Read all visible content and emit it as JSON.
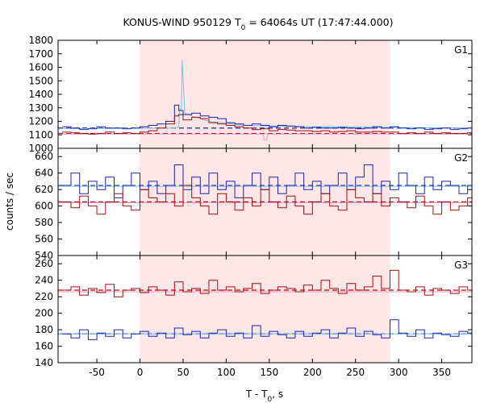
{
  "chart_data": {
    "type": "line",
    "title": "KONUS-WIND 950129 T",
    "title_sub": "0",
    "title_rest": " = 64064s UT (17:47:44.000)",
    "xlabel": "T - T",
    "xlabel_sub": "0",
    "xlabel_rest": ", s",
    "ylabel": "counts / sec",
    "xlim": [
      -95,
      385
    ],
    "xticks": [
      -50,
      0,
      50,
      100,
      150,
      200,
      250,
      300,
      350
    ],
    "highlight_interval": [
      0,
      290
    ],
    "colors": {
      "highlight": "#fde6e6",
      "red_series": "#a01010",
      "blue_series": "#2222aa",
      "light_fit": "#6fc3e8",
      "pink_fit": "#e79ad6",
      "red_dash": "#cc0000",
      "blue_dash": "#2222aa"
    },
    "panels": [
      {
        "label": "G1",
        "ylim": [
          1000,
          1800
        ],
        "yticks": [
          1000,
          1100,
          1200,
          1300,
          1400,
          1500,
          1600,
          1700,
          1800
        ],
        "background_levels": {
          "red": 1110,
          "blue": 1150
        },
        "series": [
          {
            "role": "red_series",
            "x": [
              -90,
              -80,
              -70,
              -60,
              -50,
              -40,
              -30,
              -20,
              -10,
              0,
              10,
              20,
              30,
              40,
              45,
              50,
              60,
              70,
              80,
              90,
              100,
              110,
              120,
              130,
              140,
              150,
              160,
              170,
              180,
              190,
              200,
              210,
              220,
              230,
              240,
              250,
              260,
              270,
              280,
              290,
              300,
              310,
              320,
              330,
              340,
              350,
              360,
              370,
              380
            ],
            "y": [
              1120,
              1115,
              1110,
              1105,
              1110,
              1120,
              1110,
              1115,
              1110,
              1120,
              1130,
              1150,
              1180,
              1240,
              1250,
              1210,
              1230,
              1220,
              1190,
              1180,
              1170,
              1160,
              1150,
              1140,
              1145,
              1130,
              1140,
              1135,
              1130,
              1130,
              1125,
              1130,
              1120,
              1125,
              1130,
              1120,
              1120,
              1125,
              1120,
              1120,
              1110,
              1115,
              1110,
              1120,
              1110,
              1115,
              1110,
              1110,
              1115
            ]
          },
          {
            "role": "blue_series",
            "x": [
              -90,
              -80,
              -70,
              -60,
              -50,
              -40,
              -30,
              -20,
              -10,
              0,
              10,
              20,
              30,
              40,
              45,
              50,
              60,
              70,
              80,
              90,
              100,
              110,
              120,
              130,
              140,
              150,
              160,
              170,
              180,
              190,
              200,
              210,
              220,
              230,
              240,
              250,
              260,
              270,
              280,
              290,
              300,
              310,
              320,
              330,
              340,
              350,
              360,
              370,
              380
            ],
            "y": [
              1160,
              1150,
              1140,
              1145,
              1160,
              1150,
              1150,
              1145,
              1150,
              1160,
              1170,
              1180,
              1200,
              1320,
              1280,
              1250,
              1260,
              1240,
              1230,
              1220,
              1190,
              1180,
              1170,
              1180,
              1170,
              1160,
              1170,
              1165,
              1160,
              1150,
              1155,
              1150,
              1150,
              1155,
              1150,
              1145,
              1150,
              1160,
              1150,
              1160,
              1150,
              1145,
              1150,
              1140,
              1145,
              1150,
              1140,
              1145,
              1150
            ]
          },
          {
            "role": "light_fit",
            "x": [
              -95,
              40,
              45,
              46,
              48,
              49,
              52,
              60,
              80,
              120,
              200,
              385
            ],
            "y": [
              1145,
              1150,
              1160,
              1290,
              1290,
              1650,
              1260,
              1240,
              1200,
              1170,
              1160,
              1150
            ]
          },
          {
            "role": "pink_fit",
            "x": [
              -95,
              143,
              144,
              147,
              148,
              385
            ],
            "y": [
              1105,
              1105,
              1060,
              1060,
              1105,
              1105
            ]
          }
        ]
      },
      {
        "label": "G2",
        "ylim": [
          540,
          670
        ],
        "yticks": [
          540,
          560,
          580,
          600,
          620,
          640,
          660
        ],
        "background_levels": {
          "red": 605,
          "blue": 625
        },
        "series": [
          {
            "role": "red_series",
            "x": [
              -90,
              -80,
              -70,
              -60,
              -50,
              -40,
              -30,
              -20,
              -10,
              0,
              10,
              20,
              30,
              40,
              50,
              60,
              70,
              80,
              90,
              100,
              110,
              120,
              130,
              140,
              150,
              160,
              170,
              180,
              190,
              200,
              210,
              220,
              230,
              240,
              250,
              260,
              270,
              280,
              290,
              300,
              310,
              320,
              330,
              340,
              350,
              360,
              370,
              380
            ],
            "y": [
              605,
              598,
              612,
              600,
              590,
              605,
              615,
              600,
              595,
              620,
              610,
              605,
              615,
              600,
              625,
              610,
              600,
              590,
              615,
              605,
              595,
              610,
              600,
              620,
              605,
              598,
              612,
              600,
              590,
              605,
              615,
              600,
              595,
              620,
              610,
              605,
              615,
              600,
              610,
              605,
              598,
              612,
              600,
              590,
              605,
              595,
              600,
              610
            ]
          },
          {
            "role": "blue_series",
            "x": [
              -90,
              -80,
              -70,
              -60,
              -50,
              -40,
              -30,
              -20,
              -10,
              0,
              10,
              20,
              30,
              40,
              50,
              60,
              70,
              80,
              90,
              100,
              110,
              120,
              130,
              140,
              150,
              160,
              170,
              180,
              190,
              200,
              210,
              220,
              230,
              240,
              250,
              260,
              270,
              280,
              290,
              300,
              310,
              320,
              330,
              340,
              350,
              360,
              370,
              380
            ],
            "y": [
              625,
              640,
              615,
              630,
              620,
              635,
              610,
              625,
              640,
              620,
              630,
              615,
              625,
              650,
              620,
              635,
              615,
              640,
              620,
              630,
              610,
              625,
              640,
              620,
              635,
              615,
              625,
              640,
              620,
              630,
              615,
              625,
              640,
              620,
              635,
              650,
              615,
              630,
              620,
              640,
              625,
              615,
              635,
              620,
              630,
              625,
              615,
              625
            ]
          },
          {
            "role": "light_fit",
            "x": [
              -95,
              385
            ],
            "y": [
              624,
              624
            ]
          },
          {
            "role": "pink_fit",
            "x": [
              -95,
              385
            ],
            "y": [
              604,
              604
            ]
          }
        ]
      },
      {
        "label": "G3",
        "ylim": [
          140,
          270
        ],
        "yticks": [
          140,
          160,
          180,
          200,
          220,
          240,
          260
        ],
        "background_levels": {
          "red": 228,
          "blue": 175
        },
        "series": [
          {
            "role": "red_series",
            "x": [
              -90,
              -80,
              -70,
              -60,
              -50,
              -40,
              -30,
              -20,
              -10,
              0,
              10,
              20,
              30,
              40,
              50,
              60,
              70,
              80,
              90,
              100,
              110,
              120,
              130,
              140,
              150,
              160,
              170,
              180,
              190,
              200,
              210,
              220,
              230,
              240,
              250,
              260,
              270,
              280,
              290,
              300,
              310,
              320,
              330,
              340,
              350,
              360,
              370,
              380
            ],
            "y": [
              228,
              232,
              222,
              230,
              225,
              235,
              220,
              228,
              230,
              225,
              232,
              228,
              222,
              238,
              226,
              230,
              224,
              240,
              228,
              232,
              226,
              230,
              236,
              224,
              228,
              232,
              230,
              226,
              234,
              228,
              240,
              230,
              224,
              236,
              228,
              232,
              245,
              230,
              252,
              228,
              226,
              232,
              222,
              230,
              228,
              224,
              232,
              228
            ]
          },
          {
            "role": "blue_series",
            "x": [
              -90,
              -80,
              -70,
              -60,
              -50,
              -40,
              -30,
              -20,
              -10,
              0,
              10,
              20,
              30,
              40,
              50,
              60,
              70,
              80,
              90,
              100,
              110,
              120,
              130,
              140,
              150,
              160,
              170,
              180,
              190,
              200,
              210,
              220,
              230,
              240,
              250,
              260,
              270,
              280,
              290,
              300,
              310,
              320,
              330,
              340,
              350,
              360,
              370,
              380
            ],
            "y": [
              175,
              170,
              180,
              168,
              176,
              172,
              180,
              170,
              175,
              178,
              172,
              176,
              170,
              182,
              174,
              178,
              170,
              176,
              180,
              172,
              176,
              170,
              185,
              172,
              178,
              174,
              170,
              178,
              172,
              176,
              180,
              170,
              176,
              182,
              172,
              178,
              174,
              170,
              192,
              176,
              172,
              180,
              170,
              176,
              174,
              172,
              178,
              176
            ]
          },
          {
            "role": "light_fit",
            "x": [
              -95,
              385
            ],
            "y": [
              175,
              175
            ]
          },
          {
            "role": "pink_fit",
            "x": [
              -95,
              385
            ],
            "y": [
              226,
              226
            ]
          }
        ]
      }
    ]
  }
}
